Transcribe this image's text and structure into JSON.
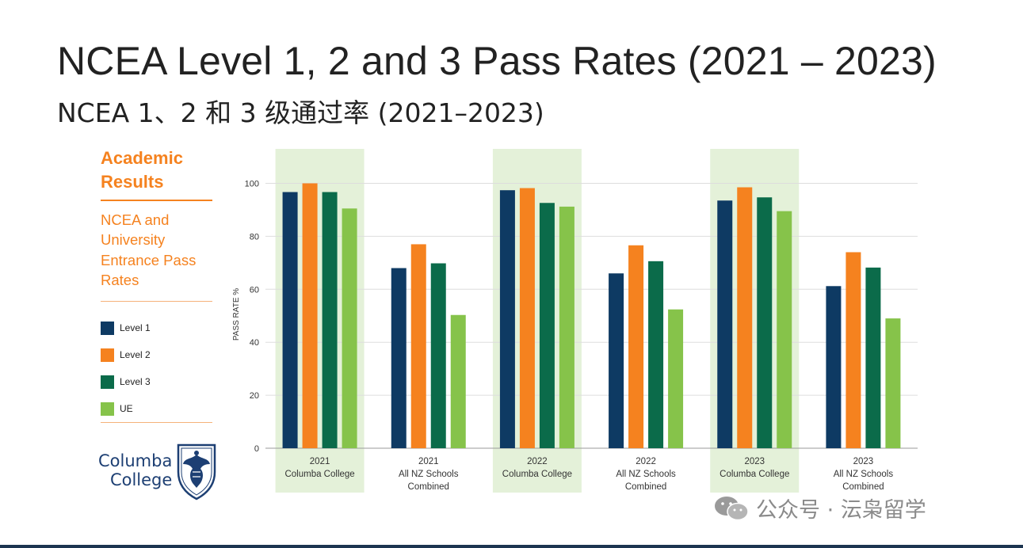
{
  "header": {
    "title": "NCEA Level 1, 2 and 3 Pass Rates (2021 – 2023)",
    "subtitle": "NCEA 1、2 和 3 级通过率 (2021–2023)"
  },
  "sidebar": {
    "heading": "Academic Results",
    "subheading": "NCEA and University Entrance Pass Rates",
    "legend": [
      {
        "label": "Level 1",
        "color": "#0e3a63"
      },
      {
        "label": "Level 2",
        "color": "#f5821f"
      },
      {
        "label": "Level 3",
        "color": "#0b6b4a"
      },
      {
        "label": "UE",
        "color": "#86c34a"
      }
    ],
    "logo": {
      "line1": "Columba",
      "line2": "College"
    }
  },
  "watermark": {
    "text": "公众号 · 沄枭留学"
  },
  "chart_data": {
    "type": "bar",
    "title": "NCEA Level 1, 2 and 3 Pass Rates (2021 – 2023)",
    "ylabel": "PASS RATE %",
    "xlabel": "",
    "ylim": [
      0,
      110
    ],
    "yticks": [
      0,
      20,
      40,
      60,
      80,
      100
    ],
    "grid": true,
    "highlight_color": "#e4f1d9",
    "groups": [
      {
        "year": "2021",
        "label_lines": [
          "2021",
          "Columba College"
        ],
        "highlight": true
      },
      {
        "year": "2021",
        "label_lines": [
          "2021",
          "All NZ Schools",
          "Combined"
        ],
        "highlight": false
      },
      {
        "year": "2022",
        "label_lines": [
          "2022",
          "Columba College"
        ],
        "highlight": true
      },
      {
        "year": "2022",
        "label_lines": [
          "2022",
          "All NZ Schools",
          "Combined"
        ],
        "highlight": false
      },
      {
        "year": "2023",
        "label_lines": [
          "2023",
          "Columba College"
        ],
        "highlight": true
      },
      {
        "year": "2023",
        "label_lines": [
          "2023",
          "All NZ Schools",
          "Combined"
        ],
        "highlight": false
      }
    ],
    "series": [
      {
        "name": "Level 1",
        "color": "#0e3a63",
        "values": [
          96.7,
          68,
          97.4,
          66,
          93.5,
          61.2
        ]
      },
      {
        "name": "Level 2",
        "color": "#f5821f",
        "values": [
          100,
          77,
          98.2,
          76.6,
          98.5,
          74
        ]
      },
      {
        "name": "Level 3",
        "color": "#0b6b4a",
        "values": [
          96.7,
          69.8,
          92.6,
          70.6,
          94.7,
          68.2
        ]
      },
      {
        "name": "UE",
        "color": "#86c34a",
        "values": [
          90.5,
          50.3,
          91.2,
          52.4,
          89.5,
          49
        ]
      }
    ]
  }
}
